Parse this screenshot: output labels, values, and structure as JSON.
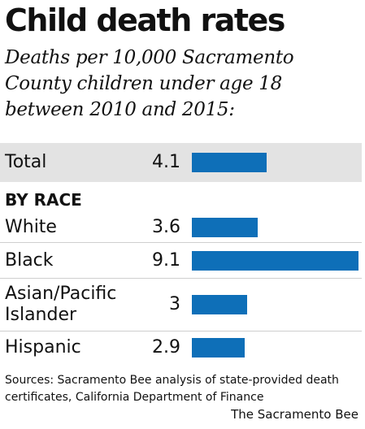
{
  "chart_data": {
    "type": "bar",
    "title": "Child death rates",
    "subtitle": "Deaths per 10,000 Sacramento County children under age 18 between 2010 and 2015:",
    "xlim": [
      0,
      9.1
    ],
    "total": {
      "label": "Total",
      "value": 4.1,
      "value_label": "4.1"
    },
    "section_label": "BY RACE",
    "categories": [
      {
        "label_lines": [
          "White"
        ],
        "value": 3.6,
        "value_label": "3.6"
      },
      {
        "label_lines": [
          "Black"
        ],
        "value": 9.1,
        "value_label": "9.1"
      },
      {
        "label_lines": [
          "Asian/Pacific",
          "Islander"
        ],
        "value": 3,
        "value_label": "3"
      },
      {
        "label_lines": [
          "Hispanic"
        ],
        "value": 2.9,
        "value_label": "2.9"
      }
    ],
    "bar_color": "#0e6fb8",
    "highlight_color": "#e3e3e3"
  },
  "footer": {
    "source": "Sources: Sacramento Bee analysis of state-provided death certificates, California Department of Finance",
    "credit": "The Sacramento Bee"
  }
}
